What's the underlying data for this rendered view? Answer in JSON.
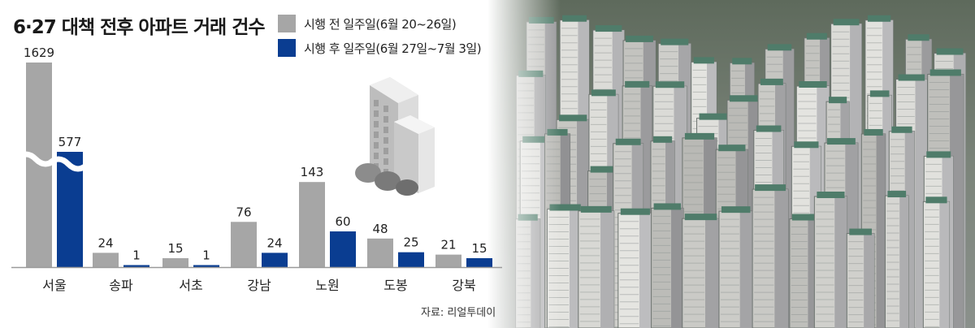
{
  "title": "6·27 대책 전후 아파트 거래 건수",
  "legend": [
    {
      "label": "시행 전 일주일(6월 20~26일)",
      "color": "#a6a6a6"
    },
    {
      "label": "시행 후 일주일(6월 27일~7월 3일)",
      "color": "#0a3d91"
    }
  ],
  "source": "자료: 리얼투데이",
  "colors": {
    "before": "#a6a6a6",
    "after": "#0a3d91",
    "axis": "#9a9a9a"
  },
  "chart_data": {
    "type": "bar",
    "title": "6·27 대책 전후 아파트 거래 건수",
    "categories": [
      "서울",
      "송파",
      "서초",
      "강남",
      "노원",
      "도봉",
      "강북"
    ],
    "series": [
      {
        "name": "시행 전 일주일(6월 20~26일)",
        "values": [
          1629,
          24,
          15,
          76,
          143,
          48,
          21
        ]
      },
      {
        "name": "시행 후 일주일(6월 27일~7월 3일)",
        "values": [
          577,
          1,
          1,
          24,
          60,
          25,
          15
        ]
      }
    ],
    "axis_break": true,
    "ylim": [
      0,
      1629
    ],
    "grid": false,
    "legend_position": "top"
  }
}
